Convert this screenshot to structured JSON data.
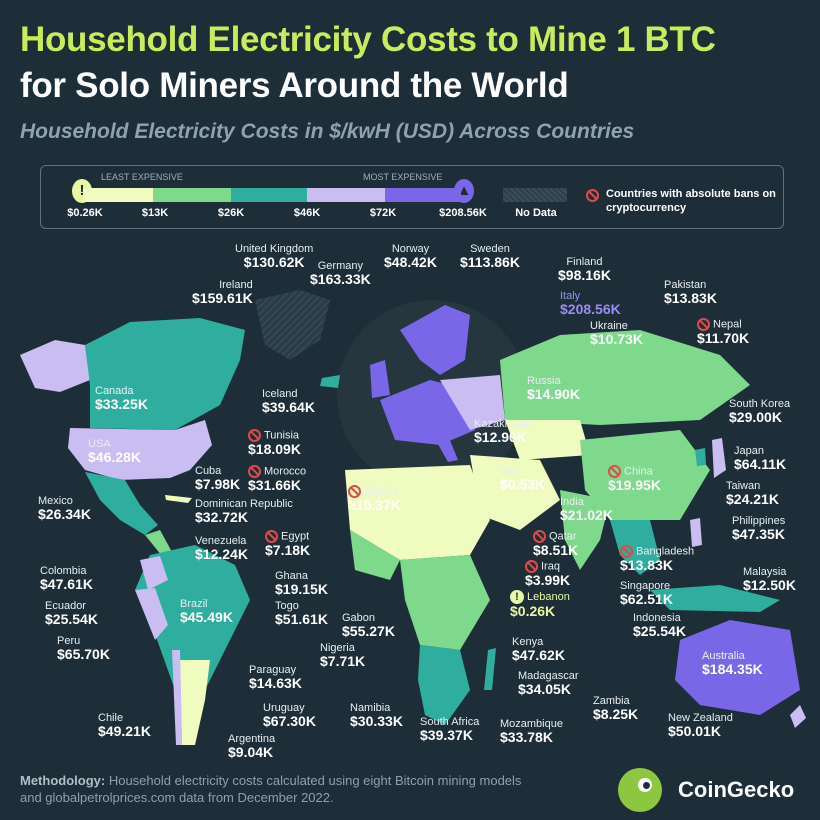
{
  "title_line1": "Household Electricity Costs to Mine 1 BTC",
  "title_line2": "for Solo Miners Around the World",
  "subtitle": "Household Electricity Costs in $/kwH (USD) Across Countries",
  "legend": {
    "least_label": "LEAST EXPENSIVE",
    "most_label": "MOST EXPENSIVE",
    "thresholds": [
      "$0.26K",
      "$13K",
      "$26K",
      "$46K",
      "$72K",
      "$208.56K"
    ],
    "no_data": "No Data",
    "ban_note": "Countries with absolute bans on cryptocurrency",
    "scale_colors": [
      "#f0fbc0",
      "#7fd98c",
      "#2fae9f",
      "#c9bdf2",
      "#7a67e8",
      "#2d3f4a"
    ],
    "min_icon": "lightbulb-icon",
    "max_icon": "lightbulb-icon"
  },
  "countries": [
    {
      "name": "United Kingdom",
      "value": "$130.62K"
    },
    {
      "name": "Norway",
      "value": "$48.42K"
    },
    {
      "name": "Sweden",
      "value": "$113.86K"
    },
    {
      "name": "Germany",
      "value": "$163.33K"
    },
    {
      "name": "Finland",
      "value": "$98.16K"
    },
    {
      "name": "Ireland",
      "value": "$159.61K"
    },
    {
      "name": "Pakistan",
      "value": "$13.83K"
    },
    {
      "name": "Italy",
      "value": "$208.56K"
    },
    {
      "name": "Nepal",
      "value": "$11.70K"
    },
    {
      "name": "Ukraine",
      "value": "$10.73K"
    },
    {
      "name": "Canada",
      "value": "$33.25K"
    },
    {
      "name": "Russia",
      "value": "$14.90K"
    },
    {
      "name": "Iceland",
      "value": "$39.64K"
    },
    {
      "name": "South Korea",
      "value": "$29.00K"
    },
    {
      "name": "Tunisia",
      "value": "$18.09K"
    },
    {
      "name": "Kazakhstan",
      "value": "$12.90K"
    },
    {
      "name": "USA",
      "value": "$46.28K"
    },
    {
      "name": "Japan",
      "value": "$64.11K"
    },
    {
      "name": "Cuba",
      "value": "$7.98K"
    },
    {
      "name": "Morocco",
      "value": "$31.66K"
    },
    {
      "name": "Iran",
      "value": "$0.53K"
    },
    {
      "name": "China",
      "value": "$19.95K"
    },
    {
      "name": "Taiwan",
      "value": "$24.21K"
    },
    {
      "name": "Algeria",
      "value": "$10.37K"
    },
    {
      "name": "Mexico",
      "value": "$26.34K"
    },
    {
      "name": "Dominican Republic",
      "value": "$32.72K"
    },
    {
      "name": "India",
      "value": "$21.02K"
    },
    {
      "name": "Philippines",
      "value": "$47.35K"
    },
    {
      "name": "Venezuela",
      "value": "$12.24K"
    },
    {
      "name": "Egypt",
      "value": "$7.18K"
    },
    {
      "name": "Qatar",
      "value": "$8.51K"
    },
    {
      "name": "Bangladesh",
      "value": "$13.83K"
    },
    {
      "name": "Colombia",
      "value": "$47.61K"
    },
    {
      "name": "Ghana",
      "value": "$19.15K"
    },
    {
      "name": "Iraq",
      "value": "$3.99K"
    },
    {
      "name": "Malaysia",
      "value": "$12.50K"
    },
    {
      "name": "Singapore",
      "value": "$62.51K"
    },
    {
      "name": "Brazil",
      "value": "$45.49K"
    },
    {
      "name": "Ecuador",
      "value": "$25.54K"
    },
    {
      "name": "Togo",
      "value": "$51.61K"
    },
    {
      "name": "Lebanon",
      "value": "$0.26K"
    },
    {
      "name": "Gabon",
      "value": "$55.27K"
    },
    {
      "name": "Indonesia",
      "value": "$25.54K"
    },
    {
      "name": "Nigeria",
      "value": "$7.71K"
    },
    {
      "name": "Kenya",
      "value": "$47.62K"
    },
    {
      "name": "Peru",
      "value": "$65.70K"
    },
    {
      "name": "Australia",
      "value": "$184.35K"
    },
    {
      "name": "Paraguay",
      "value": "$14.63K"
    },
    {
      "name": "Madagascar",
      "value": "$34.05K"
    },
    {
      "name": "Zambia",
      "value": "$8.25K"
    },
    {
      "name": "Uruguay",
      "value": "$67.30K"
    },
    {
      "name": "Namibia",
      "value": "$30.33K"
    },
    {
      "name": "New Zealand",
      "value": "$50.01K"
    },
    {
      "name": "Chile",
      "value": "$49.21K"
    },
    {
      "name": "Argentina",
      "value": "$9.04K"
    },
    {
      "name": "South Africa",
      "value": "$39.37K"
    },
    {
      "name": "Mozambique",
      "value": "$33.78K"
    }
  ],
  "methodology": {
    "label": "Methodology:",
    "text_line1": " Household electricity costs calculated using eight Bitcoin mining models",
    "text_line2": "and globalpetrolprices.com data from December 2022."
  },
  "brand": "CoinGecko"
}
